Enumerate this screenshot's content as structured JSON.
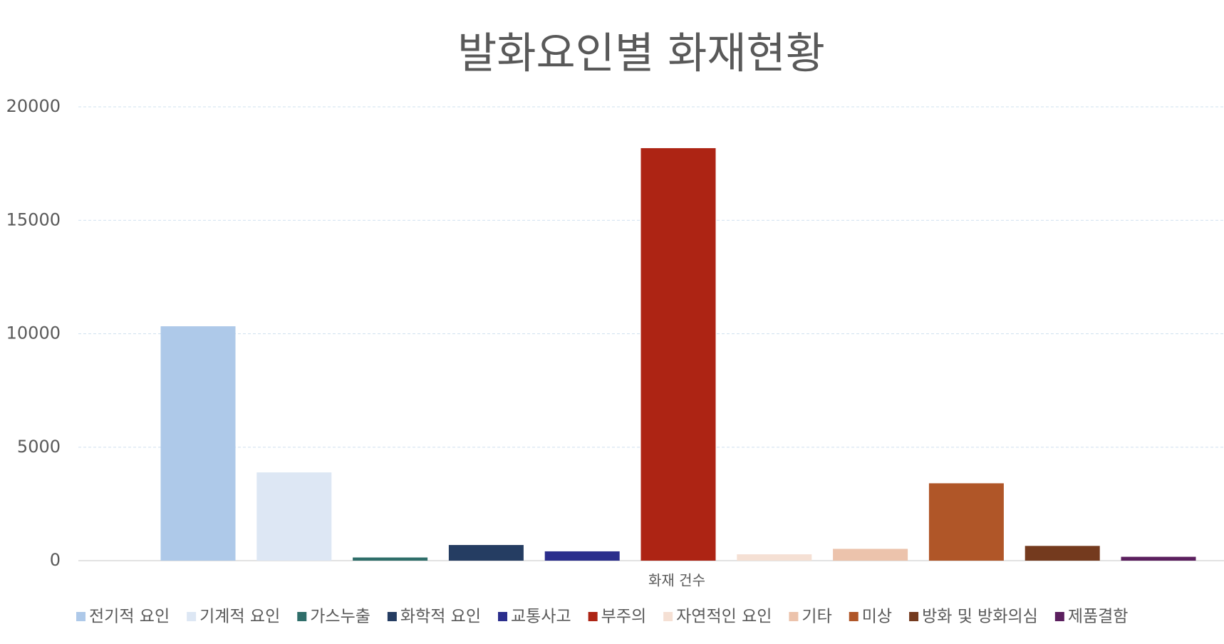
{
  "chart_data": {
    "type": "bar",
    "title": "발화요인별 화재현황",
    "categories": [
      "화재 건수"
    ],
    "series": [
      {
        "name": "전기적 요인",
        "color": "#aec9e9",
        "values": [
          10330
        ]
      },
      {
        "name": "기계적 요인",
        "color": "#dde7f4",
        "values": [
          3890
        ]
      },
      {
        "name": "가스누출",
        "color": "#2f6e6a",
        "values": [
          140
        ]
      },
      {
        "name": "화학적 요인",
        "color": "#253d62",
        "values": [
          690
        ]
      },
      {
        "name": "교통사고",
        "color": "#2b2e8c",
        "values": [
          410
        ]
      },
      {
        "name": "부주의",
        "color": "#ad2414",
        "values": [
          18180
        ]
      },
      {
        "name": "자연적인 요인",
        "color": "#f5e0d4",
        "values": [
          280
        ]
      },
      {
        "name": "기타",
        "color": "#ecc3ac",
        "values": [
          520
        ]
      },
      {
        "name": "미상",
        "color": "#b05628",
        "values": [
          3410
        ]
      },
      {
        "name": "방화 및 방화의심",
        "color": "#743a1e",
        "values": [
          650
        ]
      },
      {
        "name": "제품결함",
        "color": "#5b1f5e",
        "values": [
          170
        ]
      }
    ],
    "ylim": [
      0,
      20000
    ],
    "yticks": [
      0,
      5000,
      10000,
      15000,
      20000
    ],
    "grid": true
  }
}
